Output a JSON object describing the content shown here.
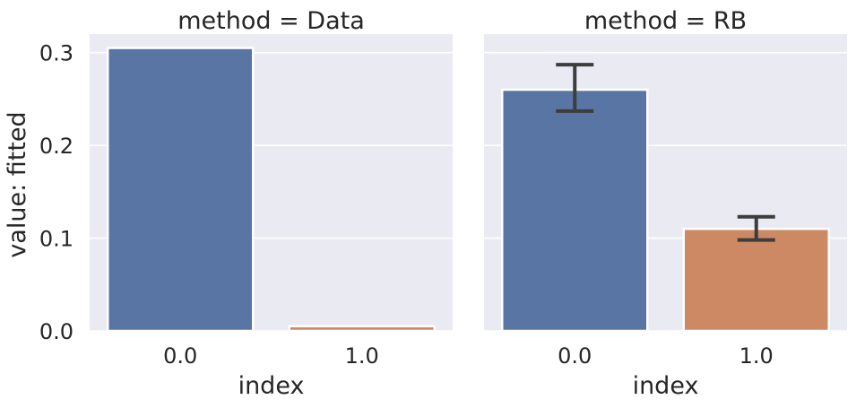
{
  "chart_data": {
    "type": "bar",
    "ylabel": "value: fitted",
    "ylim": [
      0,
      0.32
    ],
    "yticks": [
      "0.0",
      "0.1",
      "0.2",
      "0.3"
    ],
    "ytick_values": [
      0.0,
      0.1,
      0.2,
      0.3
    ],
    "colors": [
      "#5875a4",
      "#cc8963"
    ],
    "grid": true,
    "panels": [
      {
        "title": "method = Data",
        "xlabel": "index",
        "categories": [
          "0.0",
          "1.0"
        ],
        "values": [
          0.305,
          0.005
        ],
        "errors": [
          null,
          null
        ]
      },
      {
        "title": "method = RB",
        "xlabel": "index",
        "categories": [
          "0.0",
          "1.0"
        ],
        "values": [
          0.26,
          0.11
        ],
        "errors": [
          [
            0.237,
            0.287
          ],
          [
            0.098,
            0.123
          ]
        ]
      }
    ]
  }
}
